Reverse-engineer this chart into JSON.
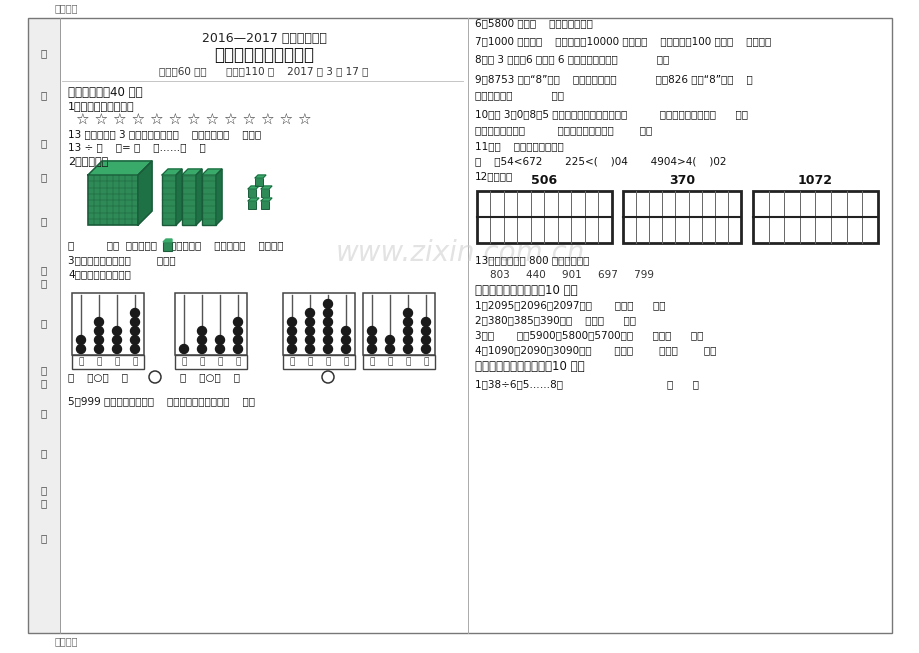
{
  "bg_color": "#ffffff",
  "watermark_text": "www.zixin.com.cn",
  "top_label": "精品文档",
  "bottom_label": "精品文档",
  "title_line1": "2016—2017 学年第二学期",
  "title_line2": "二年级数学单元练习题",
  "title_line3": "时间：60 分钟      满分：110 分    2017 年 3 月 17 日",
  "section1_header": "一、填空题（40 分）",
  "q1_text": "1、圈一圈，填一填。",
  "stars_line": "☆ ☆ ☆ ☆ ☆ ☆ ☆ ☆ ☆ ☆ ☆ ☆ ☆",
  "q1_line2": "13 个星星，每 3 个一份，分成了（    ）份，还剩（    ）个。",
  "q1_line3": "13 ÷ （    ）= （    ）……（    ）",
  "q2_text": "2、数一数。",
  "q2_line2": "（          ）个  ，它是由（    ）个一、（    ）个百和（    ）个千。",
  "q3_text": "3、读数和写数都从（        ）起。",
  "q4_text": "4、写一写，比一比。",
  "q4_line2": "（    ）○（    ）                （    ）○（    ）",
  "q5_text": "5、999 前面的一个数是（    ），后面的一个数是（    ）。",
  "right_q6": "6、5800 是由（    ）个百组成的。",
  "right_q7": "7、1000 里面有（    ）个一百，10000 里面有（    ）个一千，100 里面（    ）个十。",
  "right_q8": "8、由 3 个千、6 个百和 6 个一组成的数是（            ）。",
  "right_q9a": "9、8753 中的“8”在（    ）位上，表示（            ）；826 中的“8”在（    ）",
  "right_q9b": "位上，表示（            ）。",
  "right_q10a": "10、用 3、0、8、5 组成一个最大的四位数是（          ），它的近似数是（      ），",
  "right_q10b": "最小的四位数是（          ），它的近似数是（        ）。",
  "right_q11": "11、（    ）里最大能填几？",
  "right_q11b": "（    ）54<672       225<(    )04       4904>4(    )02",
  "right_q12": "12、画一画",
  "grid_numbers": [
    "506",
    "370",
    "1072"
  ],
  "right_q13": "13、把一些接近 800 的数圈出来。",
  "right_q13b": "803     440     901     697     799",
  "section2_header": "二、找规律填一填。（10 分）",
  "s2_q1": "1、2095、2096、2097、（       ）、（      ）。",
  "s2_q2": "2、380、385、390、（    ）、（      ）。",
  "s2_q3": "3、（       ）、5900、5800、5700、（      ）、（      ）。",
  "s2_q4": "4、1090、2090、3090、（       ）、（        ）、（        ）。",
  "section3_header": "三、火眼金睛辨对错。（10 分）",
  "s3_q1": "1、38÷6＝5……8。                                （      ）"
}
